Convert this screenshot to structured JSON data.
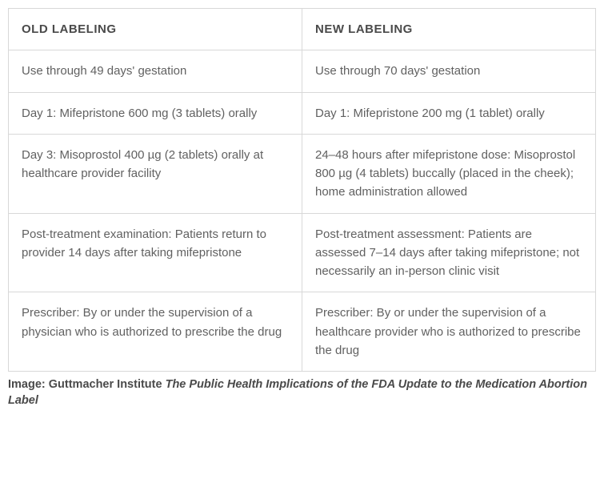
{
  "table": {
    "columns": [
      "OLD LABELING",
      "NEW LABELING"
    ],
    "rows": [
      [
        "Use through 49 days' gestation",
        "Use through 70 days' gestation"
      ],
      [
        "Day 1: Mifepristone 600 mg (3 tablets) orally",
        "Day 1: Mifepristone 200 mg (1 tablet) orally"
      ],
      [
        "Day 3: Misoprostol 400 µg (2 tablets) orally at healthcare provider facility",
        "24–48 hours after mifepristone dose: Misoprostol 800 µg (4 tablets) buccally (placed in the cheek); home administration allowed"
      ],
      [
        "Post-treatment examination: Patients return to provider 14 days after taking mifepristone",
        "Post-treatment assessment: Patients are assessed 7–14 days after taking mifepristone; not necessarily an in-person clinic visit"
      ],
      [
        "Prescriber: By or under the supervision of a physician who is authorized to prescribe the drug",
        "Prescriber: By or under the supervision of a healthcare provider who is authorized to prescribe the drug"
      ]
    ]
  },
  "caption": {
    "lead": "Image: Guttmacher Institute ",
    "title": "The Public Health Implications of the FDA Update to the Medication Abortion Label"
  }
}
